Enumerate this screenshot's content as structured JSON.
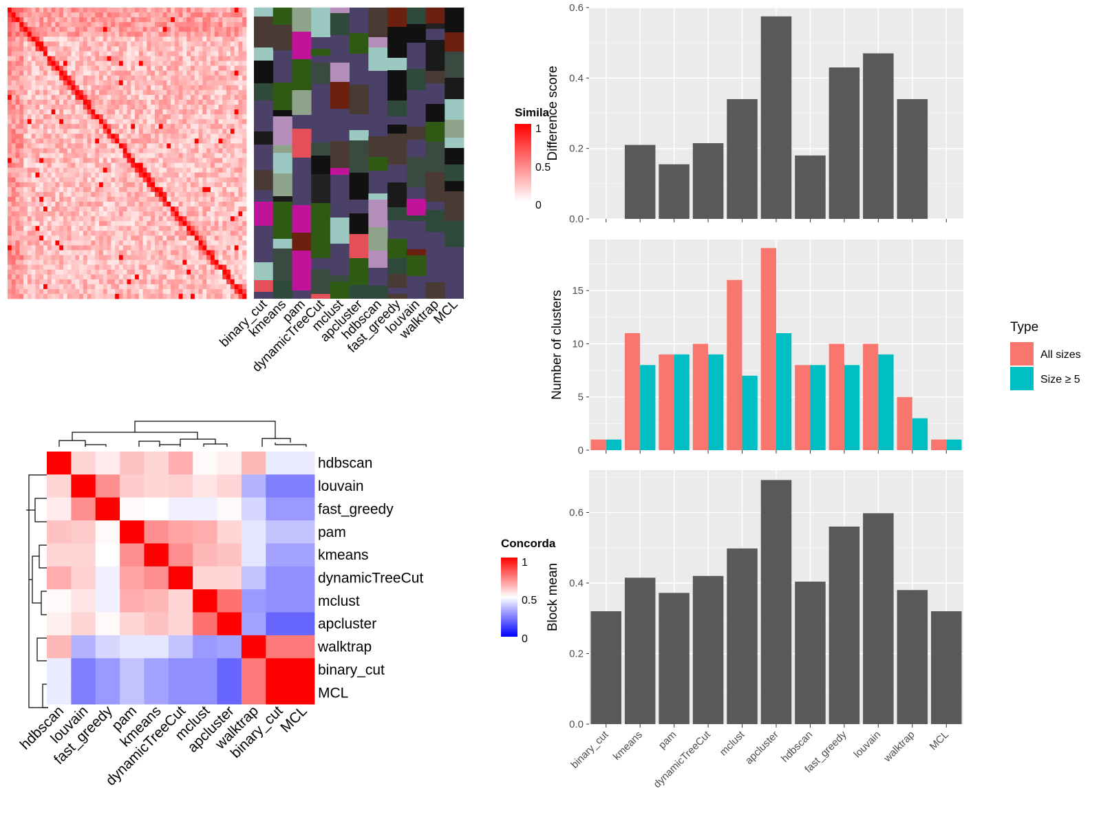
{
  "colors": {
    "heat_red": "#ff0000",
    "heat_white": "#ffffff",
    "heat_blue": "#0000ff",
    "panel_bg": "#ebebeb",
    "bar_grey": "#595959",
    "all_sizes": "#f8766d",
    "size5": "#00bfc4",
    "class_bg": "#4a4068"
  },
  "similarity_legend": {
    "title": "Simila",
    "ticks": [
      "1",
      "0.5",
      "0"
    ]
  },
  "method_labels_top": [
    "binary_cut",
    "kmeans",
    "pam",
    "dynamicTreeCut",
    "mclust",
    "apcluster",
    "hdbscan",
    "fast_greedy",
    "louvain",
    "walktrap",
    "MCL"
  ],
  "concordance": {
    "legend_title": "Concorda",
    "legend_ticks": [
      "1",
      "0.5",
      "0"
    ],
    "rows": [
      "hdbscan",
      "louvain",
      "fast_greedy",
      "pam",
      "kmeans",
      "dynamicTreeCut",
      "mclust",
      "apcluster",
      "walktrap",
      "binary_cut",
      "MCL"
    ],
    "cols": [
      "hdbscan",
      "louvain",
      "fast_greedy",
      "pam",
      "kmeans",
      "dynamicTreeCut",
      "mclust",
      "apcluster",
      "walktrap",
      "binary_cut",
      "MCL"
    ],
    "matrix": [
      [
        1.0,
        0.58,
        0.54,
        0.62,
        0.58,
        0.66,
        0.51,
        0.53,
        0.64,
        0.46,
        0.46
      ],
      [
        0.58,
        1.0,
        0.72,
        0.6,
        0.58,
        0.59,
        0.55,
        0.58,
        0.35,
        0.25,
        0.25
      ],
      [
        0.54,
        0.72,
        1.0,
        0.51,
        0.5,
        0.47,
        0.47,
        0.51,
        0.42,
        0.3,
        0.3
      ],
      [
        0.62,
        0.6,
        0.51,
        1.0,
        0.72,
        0.68,
        0.66,
        0.58,
        0.45,
        0.38,
        0.38
      ],
      [
        0.58,
        0.58,
        0.5,
        0.72,
        1.0,
        0.72,
        0.64,
        0.62,
        0.45,
        0.32,
        0.32
      ],
      [
        0.66,
        0.59,
        0.47,
        0.68,
        0.72,
        1.0,
        0.58,
        0.58,
        0.38,
        0.28,
        0.28
      ],
      [
        0.51,
        0.55,
        0.47,
        0.66,
        0.64,
        0.58,
        1.0,
        0.78,
        0.3,
        0.28,
        0.28
      ],
      [
        0.53,
        0.58,
        0.51,
        0.58,
        0.62,
        0.58,
        0.78,
        1.0,
        0.32,
        0.2,
        0.2
      ],
      [
        0.64,
        0.35,
        0.42,
        0.45,
        0.45,
        0.38,
        0.3,
        0.32,
        1.0,
        0.76,
        0.76
      ],
      [
        0.46,
        0.25,
        0.3,
        0.38,
        0.32,
        0.28,
        0.28,
        0.2,
        0.76,
        1.0,
        1.0
      ],
      [
        0.46,
        0.25,
        0.3,
        0.38,
        0.32,
        0.28,
        0.28,
        0.2,
        0.76,
        1.0,
        1.0
      ]
    ]
  },
  "legend_type": {
    "title": "Type",
    "items": [
      "All sizes",
      "Size ≥ 5"
    ]
  },
  "chart_data": [
    {
      "type": "bar",
      "categories": [
        "binary_cut",
        "kmeans",
        "pam",
        "dynamicTreeCut",
        "mclust",
        "apcluster",
        "hdbscan",
        "fast_greedy",
        "louvain",
        "walktrap",
        "MCL"
      ],
      "values": [
        0.0,
        0.21,
        0.155,
        0.215,
        0.34,
        0.575,
        0.18,
        0.43,
        0.47,
        0.34,
        0.0
      ],
      "xlabel": "",
      "ylabel": "Difference score",
      "ylim": [
        0,
        0.6
      ],
      "yticks": [
        "0.0",
        "0.2",
        "0.4",
        "0.6"
      ],
      "grid": true
    },
    {
      "type": "bar",
      "categories": [
        "binary_cut",
        "kmeans",
        "pam",
        "dynamicTreeCut",
        "mclust",
        "apcluster",
        "hdbscan",
        "fast_greedy",
        "louvain",
        "walktrap",
        "MCL"
      ],
      "series": [
        {
          "name": "All sizes",
          "values": [
            1,
            11,
            9,
            10,
            16,
            19,
            8,
            10,
            10,
            5,
            1
          ]
        },
        {
          "name": "Size ≥ 5",
          "values": [
            1,
            8,
            9,
            9,
            7,
            11,
            8,
            8,
            9,
            3,
            1
          ]
        }
      ],
      "xlabel": "",
      "ylabel": "Number of clusters",
      "ylim": [
        0,
        19.8
      ],
      "yticks": [
        "0",
        "5",
        "10",
        "15"
      ],
      "grid": true,
      "legend": "right"
    },
    {
      "type": "bar",
      "categories": [
        "binary_cut",
        "kmeans",
        "pam",
        "dynamicTreeCut",
        "mclust",
        "apcluster",
        "hdbscan",
        "fast_greedy",
        "louvain",
        "walktrap",
        "MCL"
      ],
      "values": [
        0.32,
        0.415,
        0.372,
        0.42,
        0.498,
        0.692,
        0.404,
        0.56,
        0.598,
        0.38,
        0.32
      ],
      "xlabel": "",
      "ylabel": "Block mean",
      "ylim": [
        0,
        0.72
      ],
      "yticks": [
        "0.0",
        "0.2",
        "0.4",
        "0.6"
      ],
      "grid": true
    }
  ]
}
